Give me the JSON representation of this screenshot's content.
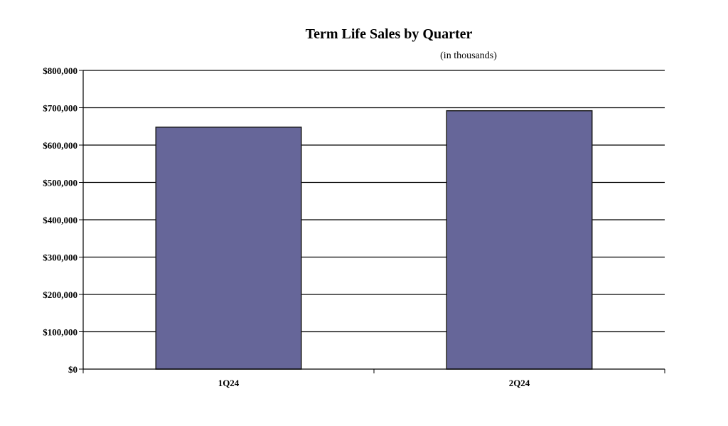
{
  "chart_data": {
    "type": "bar",
    "title": "Term Life Sales by Quarter",
    "subtitle": "(in thousands)",
    "categories": [
      "1Q24",
      "2Q24"
    ],
    "values": [
      648000,
      692000
    ],
    "xlabel": "",
    "ylabel": "",
    "ylim": [
      0,
      800000
    ],
    "yticks": [
      0,
      100000,
      200000,
      300000,
      400000,
      500000,
      600000,
      700000,
      800000
    ],
    "ytick_labels": [
      "$0",
      "$100,000",
      "$200,000",
      "$300,000",
      "$400,000",
      "$500,000",
      "$600,000",
      "$700,000",
      "$800,000"
    ],
    "grid": true,
    "legend": "none",
    "bar_color": "#666699",
    "bar_edge_color": "#1a1a1a"
  }
}
